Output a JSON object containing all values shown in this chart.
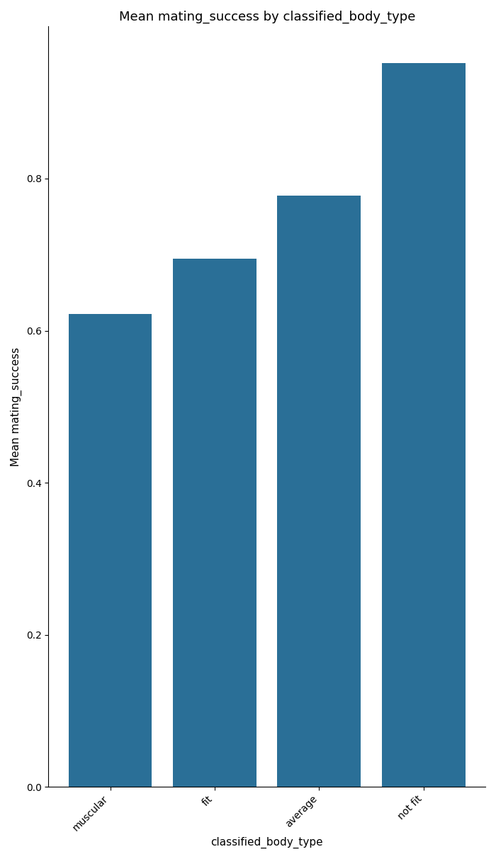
{
  "categories": [
    "muscular",
    "fit",
    "average",
    "not fit"
  ],
  "values": [
    0.622,
    0.695,
    0.778,
    0.952
  ],
  "bar_color": "#2a6f97",
  "title": "Mean mating_success by classified_body_type",
  "xlabel": "classified_body_type",
  "ylabel": "Mean mating_success",
  "ylim": [
    0.0,
    1.0
  ],
  "yticks": [
    0.0,
    0.2,
    0.4,
    0.6,
    0.8
  ],
  "title_fontsize": 13,
  "label_fontsize": 11,
  "tick_fontsize": 10,
  "bar_width": 0.8,
  "figsize": [
    7.0,
    12.12
  ],
  "dpi": 100
}
